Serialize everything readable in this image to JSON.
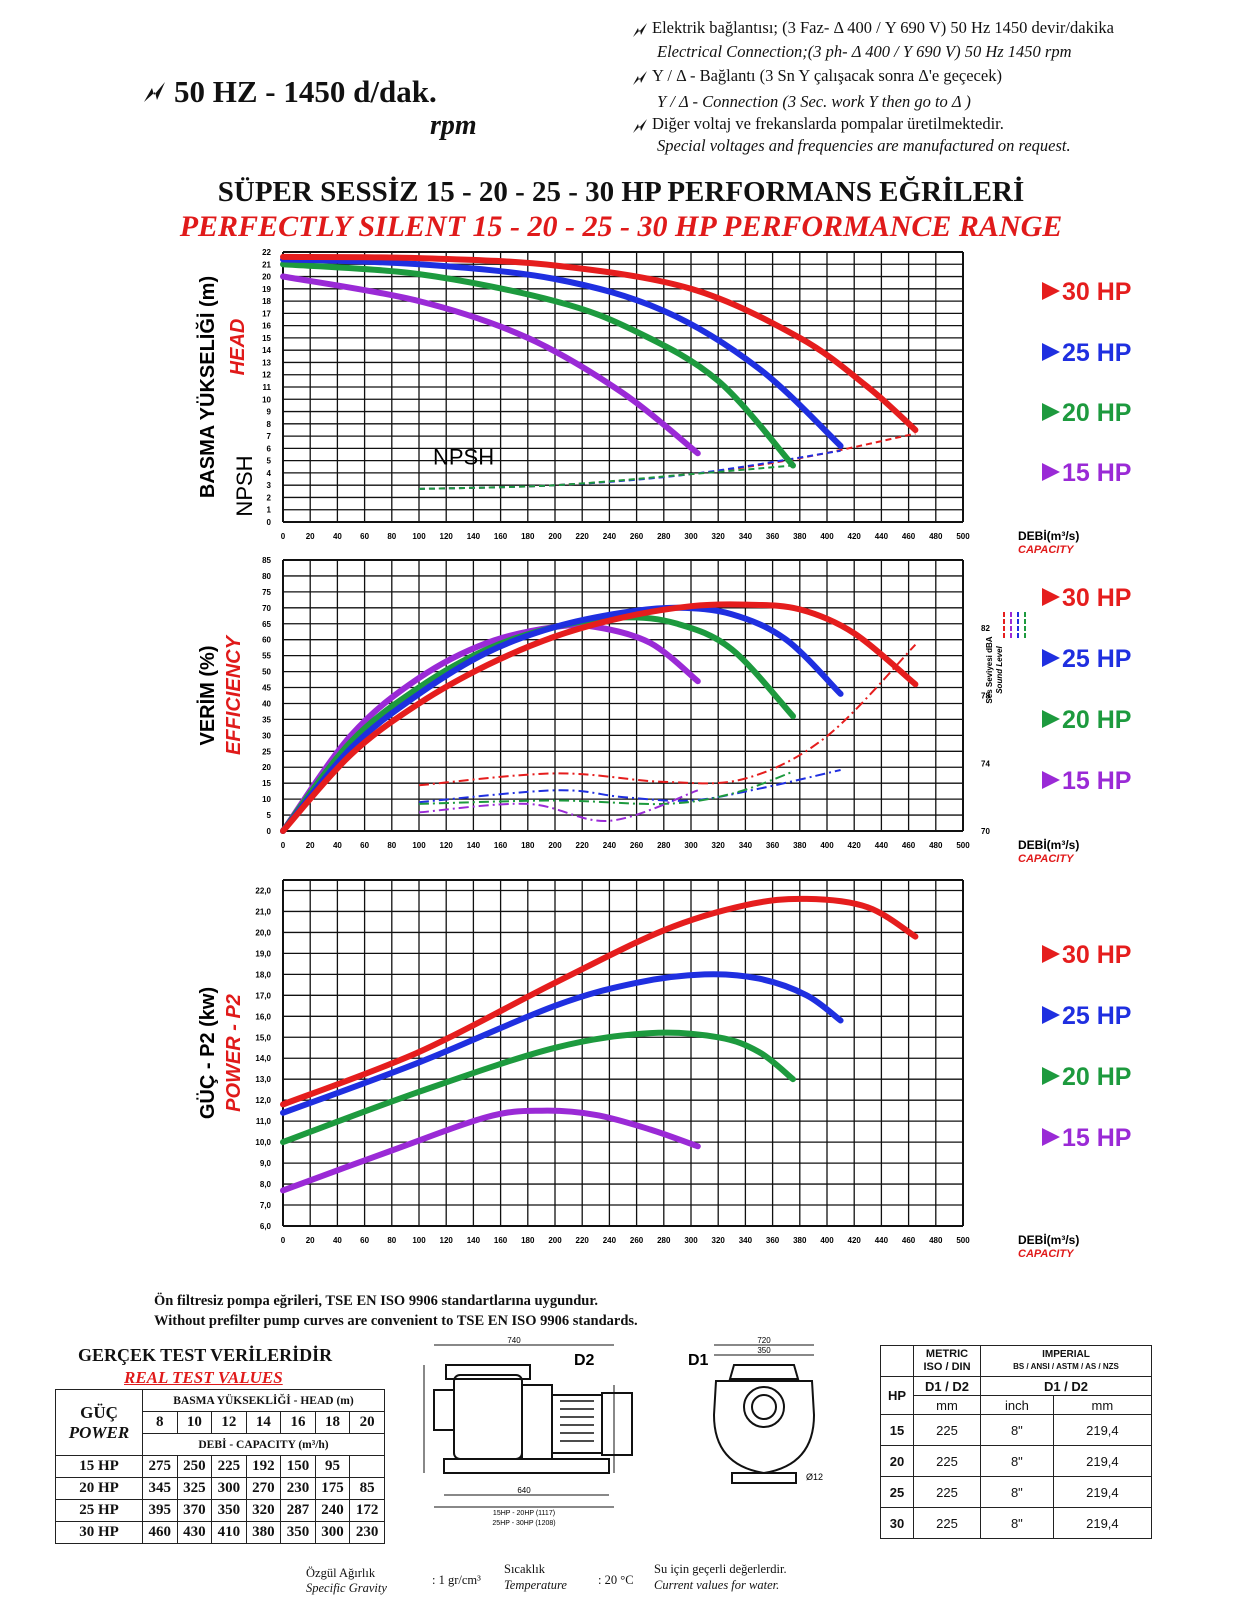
{
  "header": {
    "title": "50 HZ - 1450 d/dak.",
    "rpm": "rpm",
    "notes": [
      "Elektrik bağlantısı; (3 Faz- Δ 400 / Y 690 V) 50 Hz 1450 devir/dakika",
      "Electrical Connection;(3 ph- Δ 400 / Y 690 V) 50 Hz 1450 rpm",
      "Y / Δ - Bağlantı (3 Sn Y çalışacak sonra Δ'e geçecek)",
      "Y / Δ - Connection (3 Sec. work Y then go to Δ )",
      "Diğer voltaj ve frekanslarda pompalar üretilmektedir.",
      "Special voltages and frequencies  are manufactured on request."
    ],
    "main_title_tr": "SÜPER SESSİZ 15 - 20 - 25 - 30 HP PERFORMANS EĞRİLERİ",
    "main_title_en": "PERFECTLY SILENT 15 - 20 - 25 - 30 HP PERFORMANCE RANGE"
  },
  "colors": {
    "30": "#e51d1d",
    "25": "#1f2fe0",
    "20": "#1d9a3e",
    "15": "#9a2ad6",
    "text_red": "#e01a1a"
  },
  "hp_legend": [
    "30  HP",
    "25  HP",
    "20  HP",
    "15  HP"
  ],
  "chart_data": [
    {
      "type": "line",
      "ylabel": "BASMA YÜKSELİĞİ (m)",
      "ylabel_en": "HEAD",
      "npsh_label_side": "NPSH",
      "npsh_label": "NPSH",
      "xlabel": "DEBİ(m³/s)",
      "xlabel_en": "CAPACITY",
      "xlim": [
        0,
        500
      ],
      "ylim": [
        0,
        22
      ],
      "xticks": [
        0,
        20,
        40,
        60,
        80,
        100,
        120,
        140,
        160,
        180,
        200,
        220,
        240,
        260,
        280,
        300,
        320,
        340,
        360,
        380,
        400,
        420,
        440,
        460,
        480,
        500
      ],
      "yticks": [
        0,
        1,
        2,
        3,
        4,
        5,
        6,
        7,
        8,
        9,
        10,
        11,
        12,
        13,
        14,
        15,
        16,
        17,
        18,
        19,
        20,
        21,
        22
      ],
      "grid": true,
      "series": [
        {
          "name": "30  HP",
          "points": [
            [
              0,
              21.6
            ],
            [
              100,
              21.5
            ],
            [
              200,
              20.9
            ],
            [
              300,
              19.0
            ],
            [
              380,
              15.0
            ],
            [
              430,
              11.0
            ],
            [
              465,
              7.5
            ]
          ]
        },
        {
          "name": "25  HP",
          "points": [
            [
              0,
              21.4
            ],
            [
              100,
              21.0
            ],
            [
              200,
              19.8
            ],
            [
              280,
              17.2
            ],
            [
              350,
              12.5
            ],
            [
              410,
              6.2
            ]
          ]
        },
        {
          "name": "20  HP",
          "points": [
            [
              0,
              21.0
            ],
            [
              100,
              20.2
            ],
            [
              200,
              18.0
            ],
            [
              260,
              15.5
            ],
            [
              320,
              11.5
            ],
            [
              375,
              4.6
            ]
          ]
        },
        {
          "name": "15  HP",
          "points": [
            [
              0,
              20.0
            ],
            [
              100,
              18.0
            ],
            [
              180,
              15.0
            ],
            [
              250,
              10.5
            ],
            [
              305,
              5.6
            ]
          ]
        }
      ],
      "npsh_series": [
        {
          "name": "npsh-30",
          "points": [
            [
              100,
              2.7
            ],
            [
              200,
              3.0
            ],
            [
              300,
              3.9
            ],
            [
              380,
              5.2
            ],
            [
              465,
              7.2
            ]
          ]
        },
        {
          "name": "npsh-25",
          "points": [
            [
              100,
              2.7
            ],
            [
              200,
              3.0
            ],
            [
              300,
              3.9
            ],
            [
              410,
              5.8
            ]
          ]
        },
        {
          "name": "npsh-20",
          "points": [
            [
              100,
              2.7
            ],
            [
              200,
              3.0
            ],
            [
              300,
              3.9
            ],
            [
              375,
              4.6
            ]
          ]
        }
      ]
    },
    {
      "type": "line",
      "ylabel": "VERİM (%)",
      "ylabel_en": "EFFICIENCY",
      "sound_label": "Ses Seviyesi dBA",
      "sound_label_en": "Sound Level",
      "xlabel": "DEBİ(m³/s)",
      "xlabel_en": "CAPACITY",
      "xlim": [
        0,
        500
      ],
      "ylim": [
        0,
        85
      ],
      "xticks": [
        0,
        20,
        40,
        60,
        80,
        100,
        120,
        140,
        160,
        180,
        200,
        220,
        240,
        260,
        280,
        300,
        320,
        340,
        360,
        380,
        400,
        420,
        440,
        460,
        480,
        500
      ],
      "yticks": [
        0,
        5,
        10,
        15,
        20,
        25,
        30,
        35,
        40,
        45,
        50,
        55,
        60,
        65,
        70,
        75,
        80,
        85
      ],
      "right_ticks": [
        "70",
        "74",
        "78",
        "82"
      ],
      "right_ylim": [
        70,
        86
      ],
      "grid": true,
      "series": [
        {
          "name": "30  HP",
          "points": [
            [
              0,
              0
            ],
            [
              50,
              24
            ],
            [
              100,
              40
            ],
            [
              150,
              52
            ],
            [
              200,
              61
            ],
            [
              250,
              67
            ],
            [
              300,
              70.5
            ],
            [
              340,
              71
            ],
            [
              380,
              69.5
            ],
            [
              420,
              62
            ],
            [
              465,
              46
            ]
          ]
        },
        {
          "name": "25  HP",
          "points": [
            [
              0,
              0
            ],
            [
              50,
              26
            ],
            [
              100,
              43
            ],
            [
              150,
              56
            ],
            [
              200,
              64
            ],
            [
              250,
              68.5
            ],
            [
              290,
              70
            ],
            [
              330,
              68
            ],
            [
              370,
              60
            ],
            [
              410,
              43
            ]
          ]
        },
        {
          "name": "20  HP",
          "points": [
            [
              0,
              0
            ],
            [
              50,
              28
            ],
            [
              100,
              45
            ],
            [
              150,
              57
            ],
            [
              200,
              64
            ],
            [
              250,
              67
            ],
            [
              290,
              65
            ],
            [
              330,
              57
            ],
            [
              375,
              36
            ]
          ]
        },
        {
          "name": "15  HP",
          "points": [
            [
              0,
              0
            ],
            [
              50,
              30
            ],
            [
              100,
              48
            ],
            [
              150,
              59
            ],
            [
              200,
              64
            ],
            [
              230,
              64
            ],
            [
              270,
              59
            ],
            [
              305,
              47
            ]
          ]
        }
      ],
      "sound_series": [
        {
          "name": "snd-30",
          "points": [
            [
              100,
              72.7
            ],
            [
              200,
              73.4
            ],
            [
              280,
              72.9
            ],
            [
              340,
              73.1
            ],
            [
              400,
              75.6
            ],
            [
              465,
              81.0
            ]
          ]
        },
        {
          "name": "snd-25",
          "points": [
            [
              100,
              71.7
            ],
            [
              200,
              72.4
            ],
            [
              250,
              72.0
            ],
            [
              300,
              71.8
            ],
            [
              350,
              72.5
            ],
            [
              410,
              73.6
            ]
          ]
        },
        {
          "name": "snd-20",
          "points": [
            [
              100,
              71.6
            ],
            [
              200,
              71.8
            ],
            [
              280,
              71.6
            ],
            [
              330,
              72.2
            ],
            [
              375,
              73.5
            ]
          ]
        },
        {
          "name": "snd-15",
          "points": [
            [
              100,
              71.1
            ],
            [
              180,
              71.6
            ],
            [
              240,
              70.6
            ],
            [
              305,
              72.4
            ]
          ]
        }
      ]
    },
    {
      "type": "line",
      "ylabel": "GÜÇ - P2 (kw)",
      "ylabel_en": "POWER - P2",
      "xlabel": "DEBİ(m³/s)",
      "xlabel_en": "CAPACITY",
      "xlim": [
        0,
        500
      ],
      "ylim": [
        6,
        22.5
      ],
      "xticks": [
        0,
        20,
        40,
        60,
        80,
        100,
        120,
        140,
        160,
        180,
        200,
        220,
        240,
        260,
        280,
        300,
        320,
        340,
        360,
        380,
        400,
        420,
        440,
        460,
        480,
        500
      ],
      "yticks": [
        "6,0",
        "7,0",
        "8,0",
        "9,0",
        "10,0",
        "11,0",
        "12,0",
        "13,0",
        "14,0",
        "15,0",
        "16,0",
        "17,0",
        "18,0",
        "19,0",
        "20,0",
        "21,0",
        "22,0"
      ],
      "grid": true,
      "series": [
        {
          "name": "30  HP",
          "points": [
            [
              0,
              11.8
            ],
            [
              100,
              14.3
            ],
            [
              200,
              17.6
            ],
            [
              280,
              20.1
            ],
            [
              340,
              21.3
            ],
            [
              385,
              21.6
            ],
            [
              430,
              21.2
            ],
            [
              465,
              19.8
            ]
          ]
        },
        {
          "name": "25  HP",
          "points": [
            [
              0,
              11.4
            ],
            [
              100,
              13.8
            ],
            [
              200,
              16.5
            ],
            [
              260,
              17.6
            ],
            [
              310,
              18.0
            ],
            [
              350,
              17.8
            ],
            [
              385,
              17.0
            ],
            [
              410,
              15.8
            ]
          ]
        },
        {
          "name": "20  HP",
          "points": [
            [
              0,
              10.0
            ],
            [
              100,
              12.4
            ],
            [
              200,
              14.5
            ],
            [
              270,
              15.2
            ],
            [
              320,
              15.0
            ],
            [
              350,
              14.3
            ],
            [
              375,
              13.0
            ]
          ]
        },
        {
          "name": "15  HP",
          "points": [
            [
              0,
              7.7
            ],
            [
              80,
              9.6
            ],
            [
              150,
              11.2
            ],
            [
              190,
              11.5
            ],
            [
              230,
              11.3
            ],
            [
              270,
              10.6
            ],
            [
              305,
              9.8
            ]
          ]
        }
      ]
    }
  ],
  "standards": [
    "Ön filtresiz pompa eğrileri, TSE EN ISO 9906 standartlarına uygundur.",
    "Without prefilter pump curves are convenient to TSE EN ISO 9906 standards."
  ],
  "test": {
    "title_tr": "GERÇEK TEST VERİLERİDİR",
    "title_en": "REAL TEST VALUES",
    "power_tr": "GÜÇ",
    "power_en": "POWER",
    "head_label": "BASMA YÜKSEKLİĞİ - HEAD (m)",
    "heads": [
      "8",
      "10",
      "12",
      "14",
      "16",
      "18",
      "20"
    ],
    "capacity_label": "DEBİ - CAPACITY (m³/h)",
    "rows": [
      {
        "hp": "15 HP",
        "values": [
          "275",
          "250",
          "225",
          "192",
          "150",
          "95",
          ""
        ]
      },
      {
        "hp": "20 HP",
        "values": [
          "345",
          "325",
          "300",
          "270",
          "230",
          "175",
          "85"
        ]
      },
      {
        "hp": "25 HP",
        "values": [
          "395",
          "370",
          "350",
          "320",
          "287",
          "240",
          "172"
        ]
      },
      {
        "hp": "30 HP",
        "values": [
          "460",
          "430",
          "410",
          "380",
          "350",
          "300",
          "230"
        ]
      }
    ]
  },
  "drawing": {
    "d2_label": "D2",
    "d1_label": "D1",
    "dim_left_top": "740",
    "dim_right_top": "720",
    "dim_right_2": "350",
    "dim_base": "640",
    "dim_series_1": "15HP - 20HP (1117)",
    "dim_series_2": "25HP - 30HP (1208)",
    "dim_d3": "Ø12"
  },
  "dims": {
    "metric_label": "METRIC\nISO / DIN",
    "imperial_label": "IMPERIAL",
    "imperial_sub": "BS / ANSI / ASTM / AS / NZS",
    "hp_label": "HP",
    "d_label": "D1 / D2",
    "unit_mm": "mm",
    "unit_inch": "inch",
    "rows": [
      {
        "hp": "15",
        "mm": "225",
        "inch": "8\"",
        "mm2": "219,4"
      },
      {
        "hp": "20",
        "mm": "225",
        "inch": "8\"",
        "mm2": "219,4"
      },
      {
        "hp": "25",
        "mm": "225",
        "inch": "8\"",
        "mm2": "219,4"
      },
      {
        "hp": "30",
        "mm": "225",
        "inch": "8\"",
        "mm2": "219,4"
      }
    ]
  },
  "footer": {
    "gravity_tr": "Özgül Ağırlık",
    "gravity_en": "Specific Gravity",
    "gravity_val": ": 1 gr/cm³",
    "temp_tr": "Sıcaklık",
    "temp_en": "Temperature",
    "temp_val": ": 20 °C",
    "valid_tr": "Su için geçerli değerlerdir.",
    "valid_en": "Current values for water."
  }
}
